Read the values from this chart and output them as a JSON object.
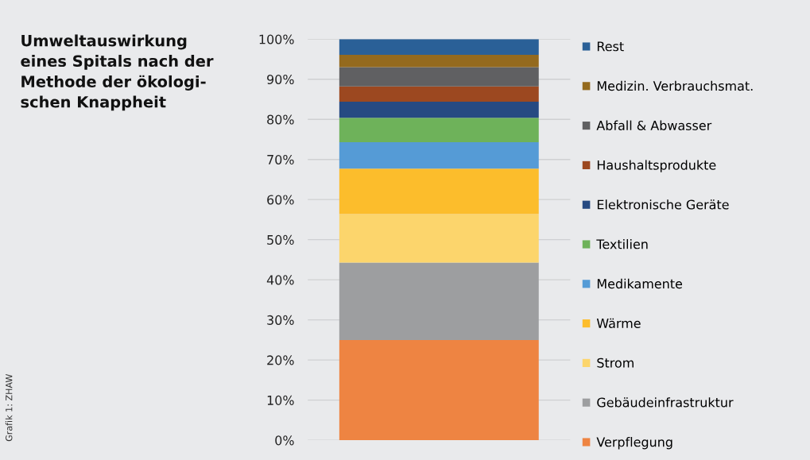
{
  "chart_data": {
    "type": "bar",
    "stacked": true,
    "title": "Umweltauswirkung\neines Spitals nach der\nMethode der ökologi-\nschen Knappheit",
    "annotations": [
      "Grafik 1: ZHAW"
    ],
    "categories": [
      null
    ],
    "series": [
      {
        "name": "Verpflegung",
        "color": "#ee8442",
        "values": [
          25
        ]
      },
      {
        "name": "Gebäudeinfrastruktur",
        "color": "#9d9ea0",
        "values": [
          19.3
        ]
      },
      {
        "name": "Strom",
        "color": "#fcd56c",
        "values": [
          12.1
        ]
      },
      {
        "name": "Wärme",
        "color": "#fcbd2c",
        "values": [
          11.3
        ]
      },
      {
        "name": "Medikamente",
        "color": "#559bd6",
        "values": [
          6.6
        ]
      },
      {
        "name": "Textilien",
        "color": "#6eb25a",
        "values": [
          6.1
        ]
      },
      {
        "name": "Elektronische Geräte",
        "color": "#264a82",
        "values": [
          4.0
        ]
      },
      {
        "name": "Haushaltsprodukte",
        "color": "#9c4820",
        "values": [
          3.8
        ]
      },
      {
        "name": "Abfall & Abwasser",
        "color": "#606062",
        "values": [
          4.8
        ]
      },
      {
        "name": "Medizin. Verbrauchsmat.",
        "color": "#946a1e",
        "values": [
          3.1
        ]
      },
      {
        "name": "Rest",
        "color": "#2a6097",
        "values": [
          3.9
        ]
      }
    ],
    "ylim": [
      0,
      100
    ],
    "yticks": [
      {
        "value": 0,
        "label": "0%"
      },
      {
        "value": 10,
        "label": "10%"
      },
      {
        "value": 20,
        "label": "20%"
      },
      {
        "value": 30,
        "label": "30%"
      },
      {
        "value": 40,
        "label": "40%"
      },
      {
        "value": 50,
        "label": "50%"
      },
      {
        "value": 60,
        "label": "60%"
      },
      {
        "value": 70,
        "label": "70%"
      },
      {
        "value": 80,
        "label": "80%"
      },
      {
        "value": 90,
        "label": "90%"
      },
      {
        "value": 100,
        "label": "100%"
      }
    ],
    "grid": "y",
    "legend": "right"
  }
}
